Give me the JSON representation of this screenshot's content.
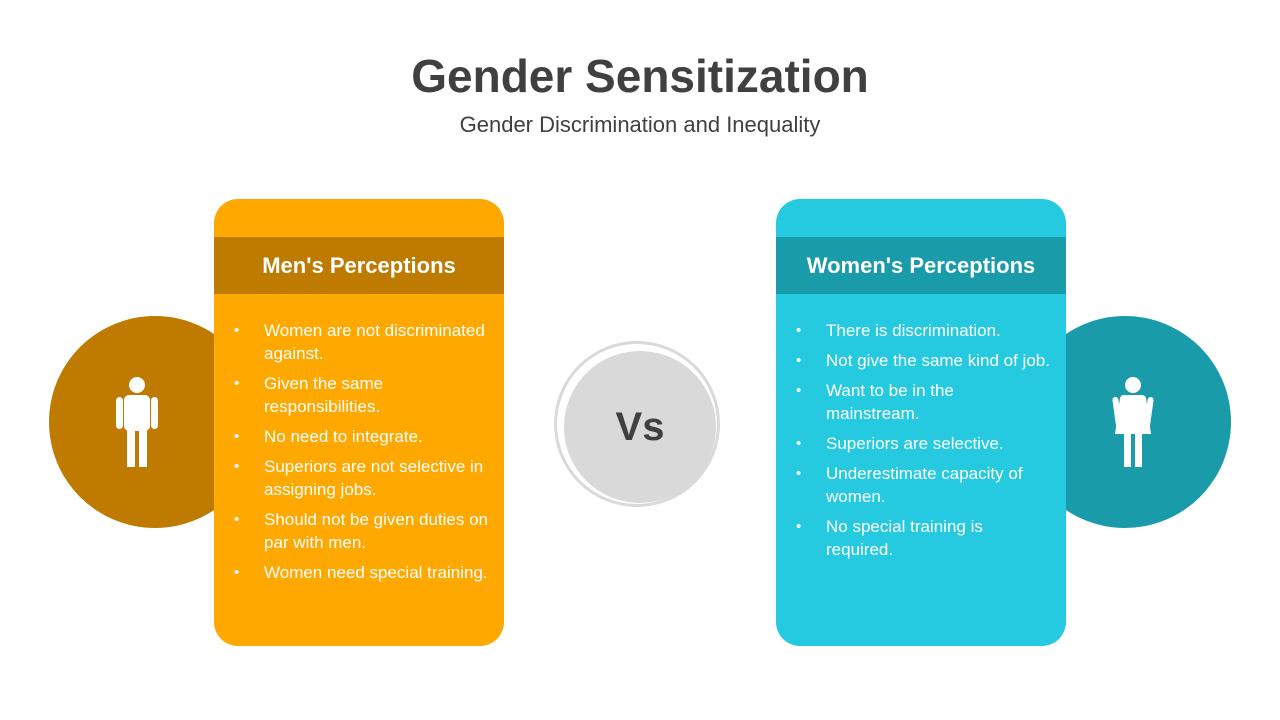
{
  "slide": {
    "title": "Gender Sensitization",
    "subtitle": "Gender Discrimination and Inequality",
    "vs_label": "Vs"
  },
  "men": {
    "heading": "Men's Perceptions",
    "icon": "male-person-icon",
    "card_color": "#FFA800",
    "accent_color": "#BE7B00",
    "points": [
      "Women are not discriminated against.",
      "Given the same responsibilities.",
      "No need to integrate.",
      "Superiors are not selective in assigning jobs.",
      "Should not be given duties on par with men.",
      "Women need special training."
    ]
  },
  "women": {
    "heading": "Women's Perceptions",
    "icon": "female-person-icon",
    "card_color": "#25CAE0",
    "accent_color": "#1A9BA9",
    "points": [
      "There is discrimination.",
      "Not give the same kind of job.",
      "Want to be in the mainstream.",
      "Superiors are selective.",
      "Underestimate capacity of women.",
      "No special training is required."
    ]
  }
}
